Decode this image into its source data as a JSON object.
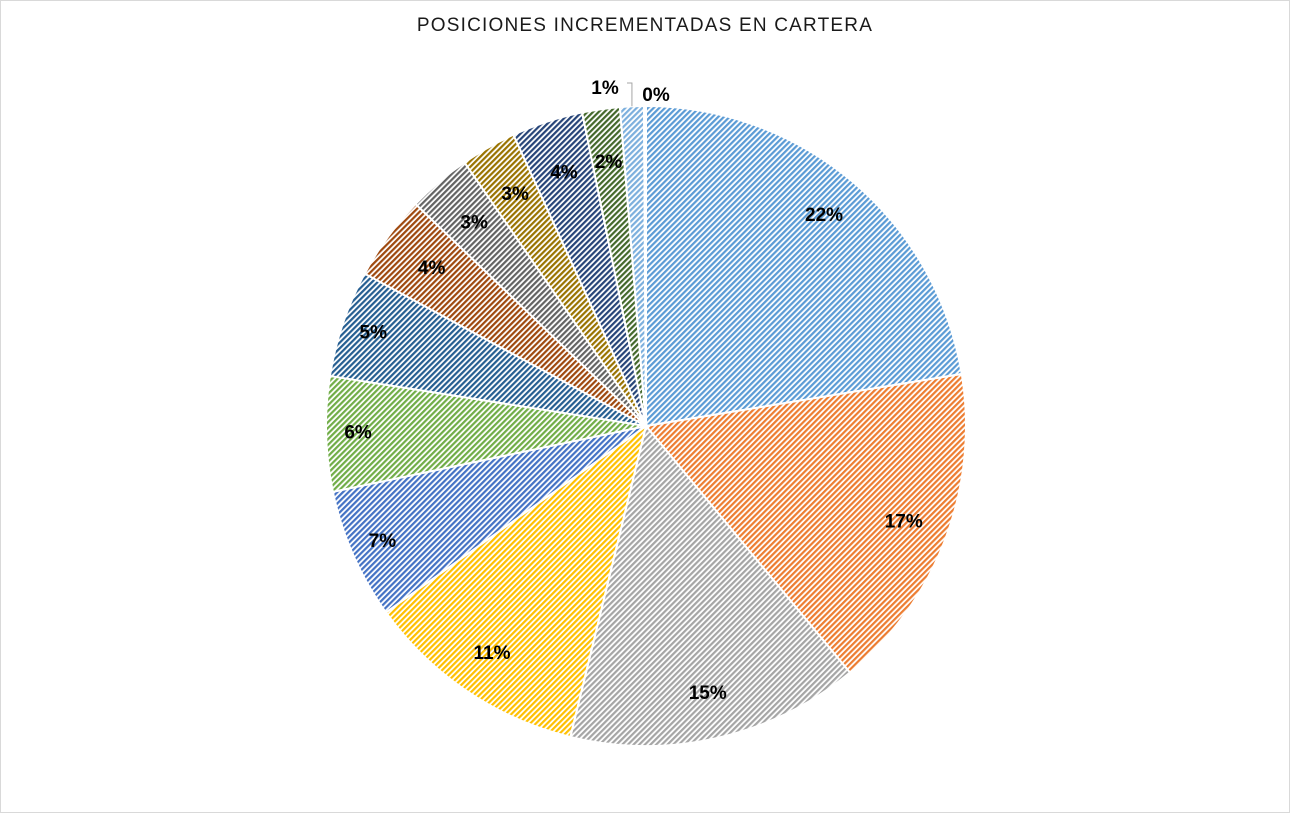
{
  "chart_data": {
    "type": "pie",
    "title": "POSICIONES INCREMENTADAS EN CARTERA",
    "start_angle": "top, clockwise",
    "pattern": "diagonal hatch",
    "slices": [
      {
        "value": 22.4,
        "label": "22%",
        "color": "#5B9BD5"
      },
      {
        "value": 16.6,
        "label": "17%",
        "color": "#ED7D31"
      },
      {
        "value": 14.8,
        "label": "15%",
        "color": "#A5A5A5"
      },
      {
        "value": 11.3,
        "label": "11%",
        "color": "#FFC000"
      },
      {
        "value": 6.6,
        "label": "7%",
        "color": "#4472C4"
      },
      {
        "value": 5.8,
        "label": "6%",
        "color": "#70AD47"
      },
      {
        "value": 5.4,
        "label": "5%",
        "color": "#255E91"
      },
      {
        "value": 4.3,
        "label": "4%",
        "color": "#9E480E"
      },
      {
        "value": 3.2,
        "label": "3%",
        "color": "#636363"
      },
      {
        "value": 2.8,
        "label": "3%",
        "color": "#997300"
      },
      {
        "value": 3.6,
        "label": "4%",
        "color": "#264478"
      },
      {
        "value": 1.9,
        "label": "2%",
        "color": "#43682B"
      },
      {
        "value": 1.2,
        "label": "1%",
        "color": "#7CAFDD"
      },
      {
        "value": 0.1,
        "label": "0%",
        "color": "#F1975A"
      }
    ]
  }
}
